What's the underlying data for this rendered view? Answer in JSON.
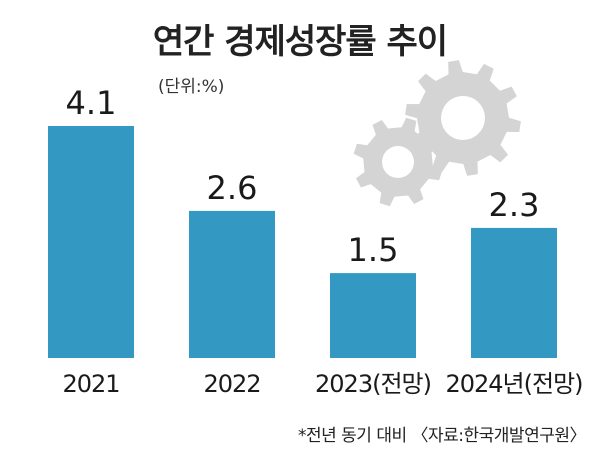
{
  "chart_data": {
    "type": "bar",
    "title": "연간 경제성장률 추이",
    "unit_label": "(단위:%)",
    "categories": [
      "2021",
      "2022",
      "2023(전망)",
      "2024년(전망)"
    ],
    "values": [
      4.1,
      2.6,
      1.5,
      2.3
    ],
    "value_labels": [
      "4.1",
      "2.6",
      "1.5",
      "2.3"
    ],
    "footnote": "*전년 동기 대비 〈자료:한국개발연구원〉",
    "bar_color": "#3399c3",
    "gear_color": "#d4d4d4",
    "ylim": [
      0,
      4.1
    ],
    "grid": false
  }
}
